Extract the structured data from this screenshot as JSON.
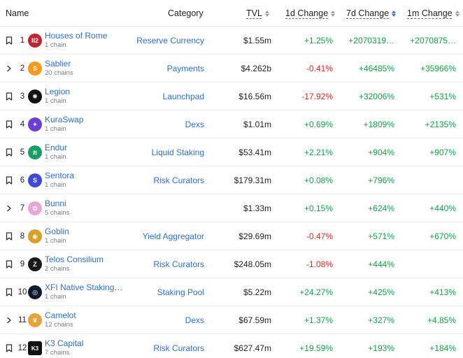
{
  "headers": {
    "name": "Name",
    "category": "Category",
    "tvl": "TVL",
    "change_1d": "1d Change",
    "change_7d": "7d Change",
    "change_1m": "1m Change"
  },
  "rows": [
    {
      "lead": "bookmark",
      "rank": "1",
      "name": "Houses of Rome",
      "chains": "1 chain",
      "category": "Reserve Currency",
      "tvl": "$1.55m",
      "d1": "+1.25%",
      "d7": "+2070319…",
      "m1": "+2070875…",
      "logo_text": "II2",
      "logo_color": "#c2242f"
    },
    {
      "lead": "chevron",
      "rank": "2",
      "name": "Sablier",
      "chains": "20 chains",
      "category": "Payments",
      "tvl": "$4.262b",
      "d1": "-0.41%",
      "d7": "+46485%",
      "m1": "+35966%",
      "logo_text": "S",
      "logo_color": "#f59a1b"
    },
    {
      "lead": "bookmark",
      "rank": "3",
      "name": "Legion",
      "chains": "1 chain",
      "category": "Launchpad",
      "tvl": "$16.56m",
      "d1": "-17.92%",
      "d7": "+32006%",
      "m1": "+531%",
      "logo_text": "✺",
      "logo_color": "#111111"
    },
    {
      "lead": "bookmark",
      "rank": "4",
      "name": "KuraSwap",
      "chains": "1 chain",
      "category": "Dexs",
      "tvl": "$1.01m",
      "d1": "+0.69%",
      "d7": "+1809%",
      "m1": "+2135%",
      "logo_text": "✦",
      "logo_color": "#6a3fd6"
    },
    {
      "lead": "bookmark",
      "rank": "5",
      "name": "Endur",
      "chains": "1 chain",
      "category": "Liquid Staking",
      "tvl": "$53.41m",
      "d1": "+2.21%",
      "d7": "+904%",
      "m1": "+907%",
      "logo_text": "≋",
      "logo_color": "#1b9e63"
    },
    {
      "lead": "bookmark",
      "rank": "6",
      "name": "Sentora",
      "chains": "1 chain",
      "category": "Risk Curators",
      "tvl": "$179.31m",
      "d1": "+0.08%",
      "d7": "+796%",
      "m1": "",
      "logo_text": "S",
      "logo_color": "#3d49d8"
    },
    {
      "lead": "chevron",
      "rank": "7",
      "name": "Bunni",
      "chains": "5 chains",
      "category": "",
      "tvl": "$1.33m",
      "d1": "+0.15%",
      "d7": "+624%",
      "m1": "+440%",
      "logo_text": "✿",
      "logo_color": "#e9a6d6"
    },
    {
      "lead": "bookmark",
      "rank": "8",
      "name": "Goblin",
      "chains": "1 chain",
      "category": "Yield Aggregator",
      "tvl": "$29.69m",
      "d1": "-0.47%",
      "d7": "+571%",
      "m1": "+670%",
      "logo_text": "◉",
      "logo_color": "#d9a025"
    },
    {
      "lead": "bookmark",
      "rank": "9",
      "name": "Telos Consilium",
      "chains": "2 chains",
      "category": "Risk Curators",
      "tvl": "$248.05m",
      "d1": "-1.08%",
      "d7": "+444%",
      "m1": "",
      "logo_text": "Z",
      "logo_color": "#1a1a1a"
    },
    {
      "lead": "bookmark",
      "rank": "10",
      "name": "XFI Native Staking…",
      "chains": "1 chain",
      "category": "Staking Pool",
      "tvl": "$5.22m",
      "d1": "+24.27%",
      "d7": "+425%",
      "m1": "+413%",
      "logo_text": "◎",
      "logo_color": "#0d1b2a"
    },
    {
      "lead": "chevron",
      "rank": "11",
      "name": "Camelot",
      "chains": "12 chains",
      "category": "Dexs",
      "tvl": "$67.59m",
      "d1": "+1.37%",
      "d7": "+327%",
      "m1": "+4.85%",
      "logo_text": "♛",
      "logo_color": "#e8a23a"
    },
    {
      "lead": "bookmark",
      "rank": "12",
      "name": "K3 Capital",
      "chains": "7 chains",
      "category": "Risk Curators",
      "tvl": "$627.47m",
      "d1": "+19.59%",
      "d7": "+193%",
      "m1": "+184%",
      "logo_text": "K3",
      "logo_color": "#111111"
    }
  ]
}
